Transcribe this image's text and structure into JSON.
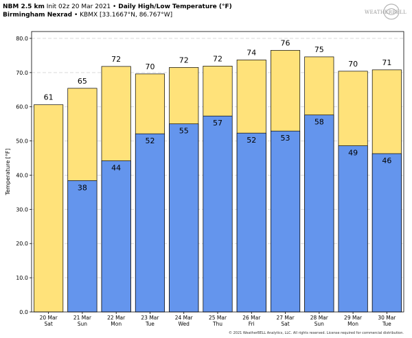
{
  "header": {
    "line1_bold": "NBM 2.5 km",
    "line1_init": "Init 02z 20 Mar 2021",
    "bullet": "•",
    "line1_title": "Daily High/Low Temperature (°F)",
    "line2_bold": "Birmingham Nexrad",
    "line2_station": "KBMX [33.1667°N, 86.767°W]"
  },
  "logo": {
    "text": "WEATHERBELL"
  },
  "copyright": "© 2021 WeatherBELL Analytics, LLC. All rights reserved. License required for commercial distribution.",
  "colors": {
    "high": "#ffe27a",
    "low": "#6495ed",
    "grid": "#d9d9d9",
    "plot_bg": "#ffffff"
  },
  "chart_data": {
    "type": "bar",
    "title": "Daily High/Low Temperature (°F)",
    "xlabel": "",
    "ylabel": "Temperature [°F]",
    "ylim": [
      0,
      82
    ],
    "yticks": [
      "0.0",
      "10.0",
      "20.0",
      "30.0",
      "40.0",
      "50.0",
      "60.0",
      "70.0",
      "80.0"
    ],
    "ytick_values": [
      0,
      10,
      20,
      30,
      40,
      50,
      60,
      70,
      80
    ],
    "grid": true,
    "categories": [
      [
        "20 Mar",
        "Sat"
      ],
      [
        "21 Mar",
        "Sun"
      ],
      [
        "22 Mar",
        "Mon"
      ],
      [
        "23 Mar",
        "Tue"
      ],
      [
        "24 Mar",
        "Wed"
      ],
      [
        "25 Mar",
        "Thu"
      ],
      [
        "26 Mar",
        "Fri"
      ],
      [
        "27 Mar",
        "Sat"
      ],
      [
        "28 Mar",
        "Sun"
      ],
      [
        "29 Mar",
        "Mon"
      ],
      [
        "30 Mar",
        "Tue"
      ]
    ],
    "series": [
      {
        "name": "High",
        "values": [
          60.6,
          65.4,
          71.8,
          69.6,
          71.5,
          71.9,
          73.7,
          76.5,
          74.6,
          70.4,
          70.8
        ],
        "labels": [
          "61",
          "65",
          "72",
          "70",
          "72",
          "72",
          "74",
          "76",
          "75",
          "70",
          "71"
        ]
      },
      {
        "name": "Low",
        "values": [
          null,
          38.4,
          44.2,
          52.1,
          55.0,
          57.3,
          52.3,
          52.9,
          57.6,
          48.6,
          46.3
        ],
        "labels": [
          "",
          "38",
          "44",
          "52",
          "55",
          "57",
          "52",
          "53",
          "58",
          "49",
          "46"
        ]
      }
    ]
  }
}
